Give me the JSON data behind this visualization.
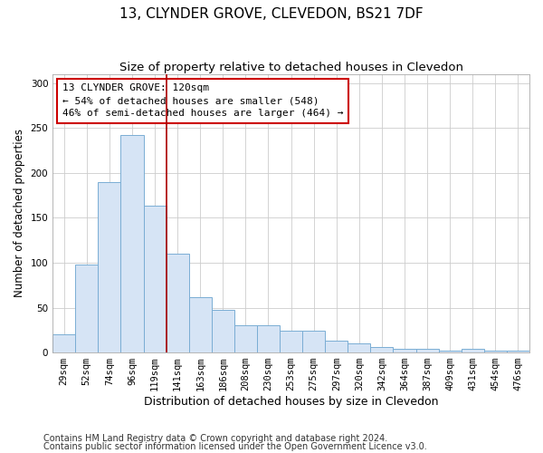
{
  "title": "13, CLYNDER GROVE, CLEVEDON, BS21 7DF",
  "subtitle": "Size of property relative to detached houses in Clevedon",
  "xlabel": "Distribution of detached houses by size in Clevedon",
  "ylabel": "Number of detached properties",
  "categories": [
    "29sqm",
    "52sqm",
    "74sqm",
    "96sqm",
    "119sqm",
    "141sqm",
    "163sqm",
    "186sqm",
    "208sqm",
    "230sqm",
    "253sqm",
    "275sqm",
    "297sqm",
    "320sqm",
    "342sqm",
    "364sqm",
    "387sqm",
    "409sqm",
    "431sqm",
    "454sqm",
    "476sqm"
  ],
  "values": [
    20,
    98,
    190,
    242,
    163,
    110,
    62,
    47,
    30,
    30,
    24,
    24,
    13,
    10,
    6,
    4,
    4,
    2,
    4,
    2,
    2
  ],
  "bar_color": "#d6e4f5",
  "bar_edge_color": "#7aadd4",
  "property_bin_index": 4,
  "property_line_color": "#aa0000",
  "annotation_line1": "13 CLYNDER GROVE: 120sqm",
  "annotation_line2": "← 54% of detached houses are smaller (548)",
  "annotation_line3": "46% of semi-detached houses are larger (464) →",
  "annotation_box_facecolor": "#ffffff",
  "annotation_box_edgecolor": "#cc0000",
  "ylim": [
    0,
    310
  ],
  "yticks": [
    0,
    50,
    100,
    150,
    200,
    250,
    300
  ],
  "background_color": "#ffffff",
  "footnote1": "Contains HM Land Registry data © Crown copyright and database right 2024.",
  "footnote2": "Contains public sector information licensed under the Open Government Licence v3.0.",
  "title_fontsize": 11,
  "subtitle_fontsize": 9.5,
  "xlabel_fontsize": 9,
  "ylabel_fontsize": 8.5,
  "tick_fontsize": 7.5,
  "annotation_fontsize": 8,
  "footnote_fontsize": 7
}
